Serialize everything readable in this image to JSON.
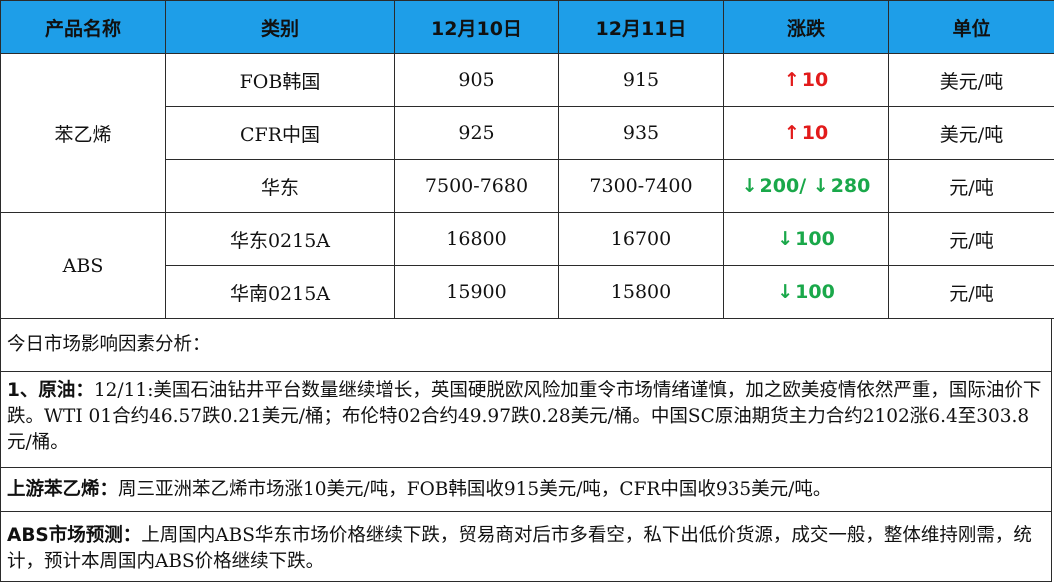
{
  "table": {
    "headers": [
      "产品名称",
      "类别",
      "12月10日",
      "12月11日",
      "涨跌",
      "单位"
    ],
    "groups": [
      {
        "product": "苯乙烯",
        "rows": [
          {
            "category": "FOB韩国",
            "d10": "905",
            "d11": "915",
            "change": [
              {
                "dir": "up",
                "arrow": "↑",
                "value": "10"
              }
            ],
            "unit": "美元/吨"
          },
          {
            "category": "CFR中国",
            "d10": "925",
            "d11": "935",
            "change": [
              {
                "dir": "up",
                "arrow": "↑",
                "value": "10"
              }
            ],
            "unit": "美元/吨"
          },
          {
            "category": "华东",
            "d10": "7500-7680",
            "d11": "7300-7400",
            "change": [
              {
                "dir": "down",
                "arrow": "↓",
                "value": "200/"
              },
              {
                "dir": "down",
                "arrow": "↓",
                "value": "280"
              }
            ],
            "unit": "元/吨"
          }
        ]
      },
      {
        "product": "ABS",
        "rows": [
          {
            "category": "华东0215A",
            "d10": "16800",
            "d11": "16700",
            "change": [
              {
                "dir": "down",
                "arrow": "↓",
                "value": "100"
              }
            ],
            "unit": "元/吨"
          },
          {
            "category": "华南0215A",
            "d10": "15900",
            "d11": "15800",
            "change": [
              {
                "dir": "down",
                "arrow": "↓",
                "value": "100"
              }
            ],
            "unit": "元/吨"
          }
        ]
      }
    ],
    "colors": {
      "header_bg": "#1e9ee8",
      "up": "#e21b1b",
      "down": "#1aa84a"
    }
  },
  "analysis": {
    "title": "今日市场影响因素分析：",
    "crude": {
      "lead": "1、原油：",
      "text": "12/11:美国石油钻井平台数量继续增长，英国硬脱欧风险加重令市场情绪谨慎，加之欧美疫情依然严重，国际油价下跌。WTI  01合约46.57跌0.21美元/桶；布伦特02合约49.97跌0.28美元/桶。中国SC原油期货主力合约2102涨6.4至303.8元/桶。"
    },
    "styrene": {
      "lead": "上游苯乙烯：",
      "text": "周三亚洲苯乙烯市场涨10美元/吨，FOB韩国收915美元/吨，CFR中国收935美元/吨。"
    },
    "abs": {
      "lead": "ABS市场预测：",
      "text": "上周国内ABS华东市场价格继续下跌，贸易商对后市多看空，私下出低价货源，成交一般，整体维持刚需，统计，预计本周国内ABS价格继续下跌。"
    }
  }
}
